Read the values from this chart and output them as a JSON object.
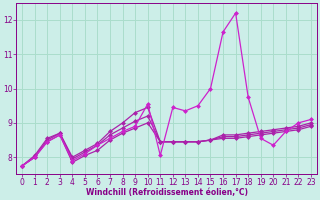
{
  "xlabel": "Windchill (Refroidissement éolien,°C)",
  "background_color": "#cceee8",
  "grid_color": "#aaddcc",
  "x": [
    0,
    1,
    2,
    3,
    4,
    5,
    6,
    7,
    8,
    9,
    10,
    11,
    12,
    13,
    14,
    15,
    16,
    17,
    18,
    19,
    20,
    21,
    22,
    23
  ],
  "line_spiky": [
    7.75,
    8.0,
    8.45,
    8.65,
    7.9,
    8.1,
    8.35,
    8.55,
    8.75,
    8.9,
    9.55,
    8.05,
    9.45,
    9.35,
    9.5,
    10.0,
    11.65,
    12.2,
    9.75,
    8.55,
    8.35,
    8.75,
    9.0,
    9.1
  ],
  "line_smooth1": [
    7.75,
    8.0,
    8.45,
    8.65,
    7.85,
    8.05,
    8.2,
    8.5,
    8.7,
    8.85,
    9.0,
    8.45,
    8.45,
    8.45,
    8.45,
    8.5,
    8.55,
    8.55,
    8.6,
    8.65,
    8.7,
    8.75,
    8.8,
    8.9
  ],
  "line_smooth2": [
    7.75,
    8.0,
    8.5,
    8.7,
    7.95,
    8.15,
    8.35,
    8.65,
    8.85,
    9.05,
    9.2,
    8.45,
    8.45,
    8.45,
    8.45,
    8.5,
    8.6,
    8.6,
    8.65,
    8.7,
    8.75,
    8.8,
    8.85,
    8.95
  ],
  "line_smooth3": [
    7.75,
    8.05,
    8.55,
    8.7,
    8.0,
    8.2,
    8.4,
    8.75,
    9.0,
    9.3,
    9.45,
    8.45,
    8.45,
    8.45,
    8.45,
    8.5,
    8.65,
    8.65,
    8.7,
    8.75,
    8.8,
    8.85,
    8.9,
    9.0
  ],
  "color_spiky": "#cc22cc",
  "color_smooth": "#aa22aa",
  "ylim": [
    7.5,
    12.5
  ],
  "xlim": [
    -0.5,
    23.5
  ],
  "yticks": [
    8,
    9,
    10,
    11,
    12
  ],
  "xticks": [
    0,
    1,
    2,
    3,
    4,
    5,
    6,
    7,
    8,
    9,
    10,
    11,
    12,
    13,
    14,
    15,
    16,
    17,
    18,
    19,
    20,
    21,
    22,
    23
  ],
  "tick_fontsize": 5.5,
  "xlabel_fontsize": 5.5,
  "markersize": 2.5
}
